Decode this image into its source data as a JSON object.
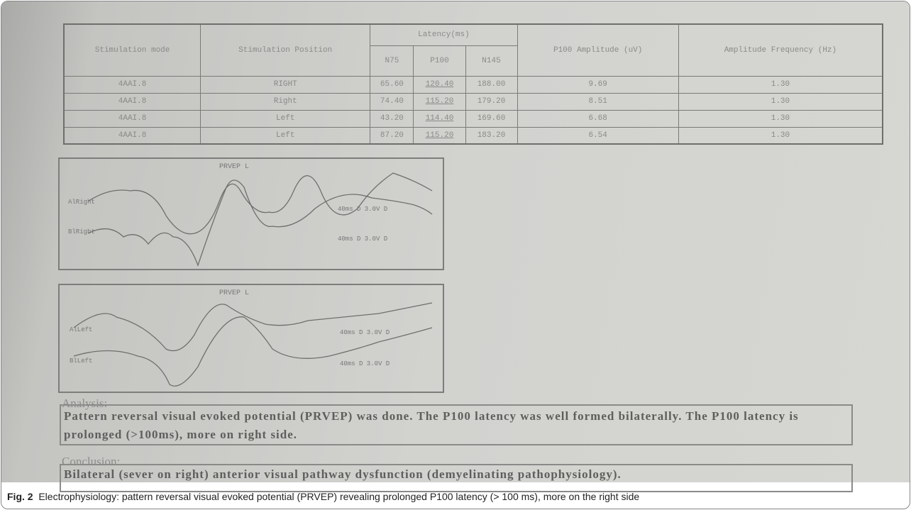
{
  "table": {
    "header": {
      "stimulation_mode": "Stimulation mode",
      "stimulation_position": "Stimulation Position",
      "latency": "Latency(ms)",
      "n75": "N75",
      "p100": "P100",
      "n145": "N145",
      "p100_amplitude": "P100 Amplitude (uV)",
      "amplitude_frequency": "Amplitude Frequency (Hz)"
    },
    "rows": [
      [
        "4AAI.8",
        "RIGHT",
        "65.60",
        "120.40",
        "188.00",
        "9.69",
        "1.30"
      ],
      [
        "4AAI.8",
        "Right",
        "74.40",
        "115.20",
        "179.20",
        "8.51",
        "1.30"
      ],
      [
        "4AAI.8",
        "Left",
        "43.20",
        "114.40",
        "169.60",
        "6.68",
        "1.30"
      ],
      [
        "4AAI.8",
        "Left",
        "87.20",
        "115.20",
        "183.20",
        "6.54",
        "1.30"
      ]
    ]
  },
  "panels": [
    {
      "title": "PRVEP L",
      "traces": [
        "AlRight",
        "BlRight"
      ],
      "scales": [
        "40ms D 3.0V D",
        "40ms D 3.0V D"
      ]
    },
    {
      "title": "PRVEP L",
      "traces": [
        "AlLeft",
        "BlLeft"
      ],
      "scales": [
        "40ms D 3.0V D",
        "40ms D 3.0V D"
      ]
    }
  ],
  "analysis": {
    "title": "Analysis:",
    "text": "Pattern reversal visual evoked potential (PRVEP) was done. The P100 latency was well formed bilaterally. The P100 latency is prolonged (>100ms), more on right side."
  },
  "conclusion": {
    "title": "Conclusion:",
    "text": "Bilateral (sever on right) anterior visual pathway dysfunction (demyelinating pathophysiology)."
  },
  "caption": {
    "label": "Fig. 2",
    "text": "Electrophysiology: pattern reversal visual evoked potential (PRVEP) revealing prolonged P100 latency (> 100 ms), more on the right side"
  }
}
